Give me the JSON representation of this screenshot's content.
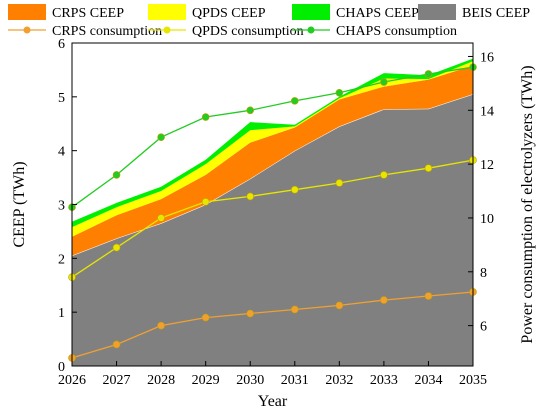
{
  "chart_data": {
    "type": "area",
    "xlabel": "Year",
    "ylabel": "CEEP (TWh)",
    "y2label": "Power consumption of electrolyzers (TWh)",
    "x": [
      "2026",
      "2027",
      "2028",
      "2029",
      "2030",
      "2031",
      "2032",
      "2033",
      "2034",
      "2035"
    ],
    "ylim": [
      0,
      6
    ],
    "y2lim": [
      4.5,
      16.5
    ],
    "yticks": [
      "0",
      "1",
      "2",
      "3",
      "4",
      "5",
      "6"
    ],
    "y2ticks": [
      "6",
      "8",
      "10",
      "12",
      "14",
      "16"
    ],
    "stacked_series": [
      {
        "name": "BEIS CEEP",
        "color": "#808080",
        "values": [
          2.05,
          2.37,
          2.65,
          3.0,
          3.48,
          4.0,
          4.45,
          4.77,
          4.78,
          5.05
        ]
      },
      {
        "name": "CRPS CEEP",
        "color": "#ff7f00",
        "values": [
          0.35,
          0.43,
          0.45,
          0.55,
          0.67,
          0.43,
          0.5,
          0.42,
          0.54,
          0.53
        ]
      },
      {
        "name": "QPDS CEEP",
        "color": "#ffff00",
        "values": [
          0.18,
          0.15,
          0.15,
          0.2,
          0.23,
          0.02,
          0.02,
          0.15,
          0.01,
          0.08
        ]
      },
      {
        "name": "CHAPS CEEP",
        "color": "#00ee00",
        "values": [
          0.1,
          0.08,
          0.08,
          0.08,
          0.15,
          0.03,
          0.03,
          0.1,
          0.07,
          0.05
        ]
      }
    ],
    "line_series": [
      {
        "name": "CRPS consumption",
        "color": "#f0a030",
        "values": [
          4.8,
          5.3,
          6.0,
          6.3,
          6.45,
          6.6,
          6.75,
          6.95,
          7.1,
          7.25
        ]
      },
      {
        "name": "QPDS consumption",
        "color": "#e6e600",
        "values": [
          7.8,
          8.9,
          10.0,
          10.6,
          10.8,
          11.05,
          11.3,
          11.6,
          11.85,
          12.15
        ]
      },
      {
        "name": "CHAPS consumption",
        "color": "#22cc22",
        "values": [
          10.4,
          11.6,
          13.0,
          13.75,
          14.0,
          14.35,
          14.65,
          15.05,
          15.35,
          15.6
        ]
      }
    ],
    "legend": {
      "placement": "top",
      "items": [
        {
          "label": "CRPS CEEP",
          "kind": "swatch",
          "color": "#ff7f00"
        },
        {
          "label": "QPDS CEEP",
          "kind": "swatch",
          "color": "#ffff00"
        },
        {
          "label": "CHAPS CEEP",
          "kind": "swatch",
          "color": "#00ee00"
        },
        {
          "label": "BEIS CEEP",
          "kind": "swatch",
          "color": "#808080"
        },
        {
          "label": "CRPS consumption",
          "kind": "line",
          "color": "#f0a030"
        },
        {
          "label": "QPDS consumption",
          "kind": "line",
          "color": "#e6e600"
        },
        {
          "label": "CHAPS consumption",
          "kind": "line",
          "color": "#22cc22"
        }
      ]
    },
    "grid": false
  }
}
